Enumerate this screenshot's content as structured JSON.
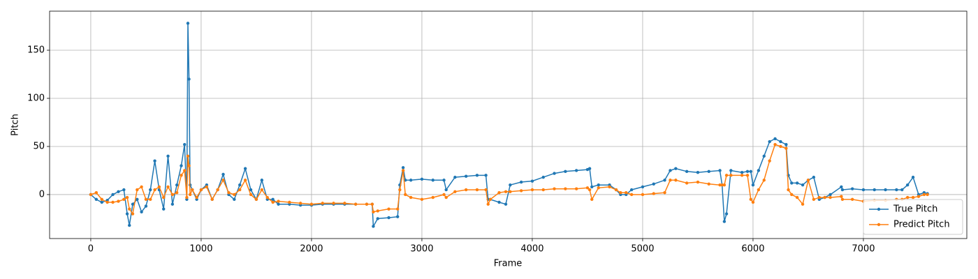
{
  "chart_data": {
    "type": "line",
    "x_label": "Frame",
    "y_label": "Pitch",
    "x": [
      0,
      50,
      100,
      150,
      200,
      250,
      300,
      330,
      350,
      380,
      420,
      460,
      500,
      540,
      580,
      620,
      660,
      700,
      740,
      780,
      820,
      850,
      870,
      880,
      890,
      900,
      920,
      960,
      1000,
      1050,
      1100,
      1150,
      1200,
      1250,
      1300,
      1350,
      1400,
      1450,
      1500,
      1550,
      1600,
      1650,
      1700,
      1800,
      1900,
      2000,
      2100,
      2200,
      2300,
      2400,
      2500,
      2550,
      2560,
      2600,
      2700,
      2780,
      2800,
      2830,
      2850,
      2900,
      3000,
      3100,
      3200,
      3220,
      3300,
      3400,
      3500,
      3580,
      3600,
      3620,
      3700,
      3760,
      3800,
      3900,
      4000,
      4100,
      4200,
      4300,
      4400,
      4500,
      4520,
      4540,
      4600,
      4700,
      4760,
      4800,
      4850,
      4900,
      5000,
      5100,
      5200,
      5250,
      5300,
      5400,
      5500,
      5600,
      5700,
      5720,
      5740,
      5760,
      5800,
      5900,
      5950,
      5980,
      6000,
      6050,
      6100,
      6150,
      6200,
      6250,
      6300,
      6320,
      6350,
      6400,
      6450,
      6500,
      6550,
      6600,
      6650,
      6700,
      6800,
      6810,
      6900,
      7000,
      7100,
      7200,
      7300,
      7350,
      7400,
      7450,
      7500,
      7550,
      7580
    ],
    "series": [
      {
        "name": "True Pitch",
        "color": "#1f77b4",
        "values": [
          0,
          -5,
          -8,
          -6,
          0,
          3,
          5,
          -20,
          -32,
          -10,
          -5,
          -18,
          -12,
          5,
          35,
          5,
          -15,
          40,
          -10,
          10,
          30,
          52,
          -5,
          178,
          120,
          10,
          5,
          -5,
          5,
          10,
          -5,
          5,
          21,
          0,
          -5,
          10,
          27,
          5,
          -5,
          15,
          -5,
          -5,
          -10,
          -10,
          -11,
          -11,
          -10,
          -10,
          -10,
          -10,
          -10,
          -10,
          -33,
          -25,
          -24,
          -23,
          10,
          28,
          15,
          15,
          16,
          15,
          15,
          5,
          18,
          19,
          20,
          20,
          -5,
          -5,
          -8,
          -10,
          10,
          13,
          14,
          18,
          22,
          24,
          25,
          26,
          27,
          8,
          10,
          10,
          5,
          0,
          0,
          5,
          8,
          11,
          15,
          25,
          27,
          24,
          23,
          24,
          25,
          10,
          -28,
          -20,
          25,
          23,
          24,
          24,
          10,
          25,
          40,
          55,
          58,
          55,
          52,
          20,
          12,
          12,
          10,
          15,
          18,
          -5,
          -3,
          0,
          8,
          5,
          6,
          5,
          5,
          5,
          5,
          5,
          10,
          18,
          0,
          2,
          1
        ]
      },
      {
        "name": "Predict Pitch",
        "color": "#ff7f0e",
        "values": [
          0,
          2,
          -5,
          -8,
          -8,
          -7,
          -5,
          -3,
          -15,
          -20,
          5,
          8,
          -5,
          -5,
          5,
          8,
          -3,
          8,
          0,
          2,
          20,
          25,
          -3,
          40,
          30,
          0,
          5,
          -3,
          5,
          8,
          -5,
          5,
          15,
          2,
          0,
          5,
          15,
          0,
          -5,
          5,
          -3,
          -8,
          -7,
          -8,
          -9,
          -10,
          -9,
          -9,
          -9,
          -10,
          -10,
          -10,
          -18,
          -17,
          -15,
          -15,
          5,
          25,
          0,
          -3,
          -5,
          -3,
          0,
          -3,
          3,
          5,
          5,
          5,
          -10,
          -5,
          2,
          3,
          3,
          4,
          5,
          5,
          6,
          6,
          6,
          7,
          5,
          -5,
          7,
          8,
          5,
          2,
          2,
          0,
          0,
          1,
          2,
          15,
          15,
          12,
          13,
          11,
          10,
          10,
          10,
          20,
          20,
          20,
          20,
          -5,
          -8,
          5,
          15,
          35,
          52,
          50,
          48,
          5,
          0,
          -3,
          -10,
          15,
          -5,
          -3,
          -3,
          -3,
          -2,
          -5,
          -5,
          -7,
          -6,
          -6,
          -5,
          -5,
          -3,
          -3,
          -2,
          0,
          0
        ]
      }
    ],
    "xlim": [
      -373,
      7937
    ],
    "ylim": [
      -45.7,
      190.6
    ],
    "xticks": [
      0,
      1000,
      2000,
      3000,
      4000,
      5000,
      6000,
      7000
    ],
    "yticks": [
      0,
      50,
      100,
      150
    ],
    "grid": true,
    "legend": "lower right"
  }
}
